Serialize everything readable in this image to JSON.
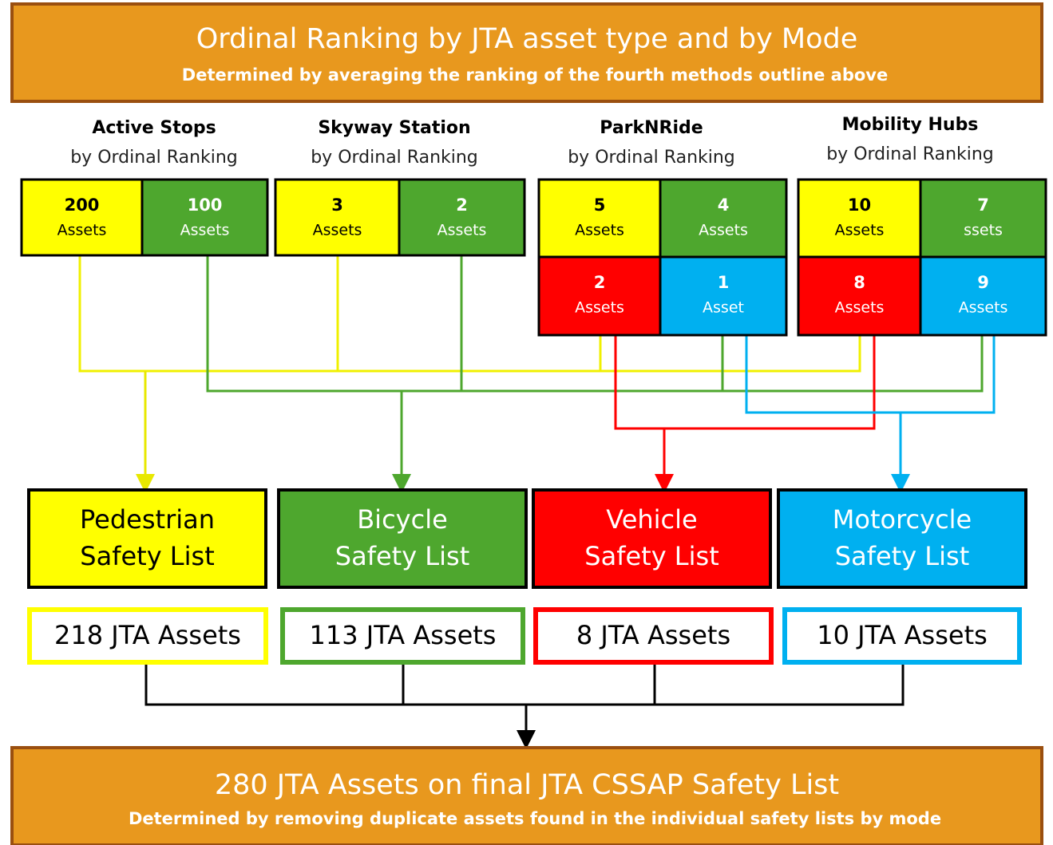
{
  "header": {
    "title": "Ordinal Ranking by JTA asset type and by Mode",
    "subtitle": "Determined by averaging the ranking of the fourth methods outline above"
  },
  "groups": [
    {
      "title": "Active Stops",
      "subtitle": "by Ordinal Ranking",
      "cells": [
        {
          "value": "200",
          "unit": "Assets"
        },
        {
          "value": "100",
          "unit": "Assets"
        }
      ]
    },
    {
      "title": "Skyway Station",
      "subtitle": "by Ordinal Ranking",
      "cells": [
        {
          "value": "3",
          "unit": "Assets"
        },
        {
          "value": "2",
          "unit": "Assets"
        }
      ]
    },
    {
      "title": "ParkNRide",
      "subtitle": "by Ordinal Ranking",
      "cells": [
        {
          "value": "5",
          "unit": "Assets"
        },
        {
          "value": "4",
          "unit": "Assets"
        },
        {
          "value": "2",
          "unit": "Assets"
        },
        {
          "value": "1",
          "unit": "Asset"
        }
      ]
    },
    {
      "title": "Mobility Hubs",
      "subtitle": "by Ordinal Ranking",
      "cells": [
        {
          "value": "10",
          "unit": "Assets"
        },
        {
          "value": "7",
          "unit": "ssets"
        },
        {
          "value": "8",
          "unit": "Assets"
        },
        {
          "value": "9",
          "unit": "Assets"
        }
      ]
    }
  ],
  "lists": [
    {
      "label": [
        "Pedestrian",
        "Safety List"
      ],
      "count": "218 JTA Assets"
    },
    {
      "label": [
        "Bicycle",
        "Safety List"
      ],
      "count": "113 JTA Assets"
    },
    {
      "label": [
        "Vehicle",
        "Safety List"
      ],
      "count": "8 JTA Assets"
    },
    {
      "label": [
        "Motorcycle",
        "Safety List"
      ],
      "count": "10 JTA Assets"
    }
  ],
  "footer": {
    "title": "280 JTA Assets on final JTA CSSAP Safety List",
    "subtitle": "Determined by removing duplicate assets found in the individual safety lists by mode"
  }
}
